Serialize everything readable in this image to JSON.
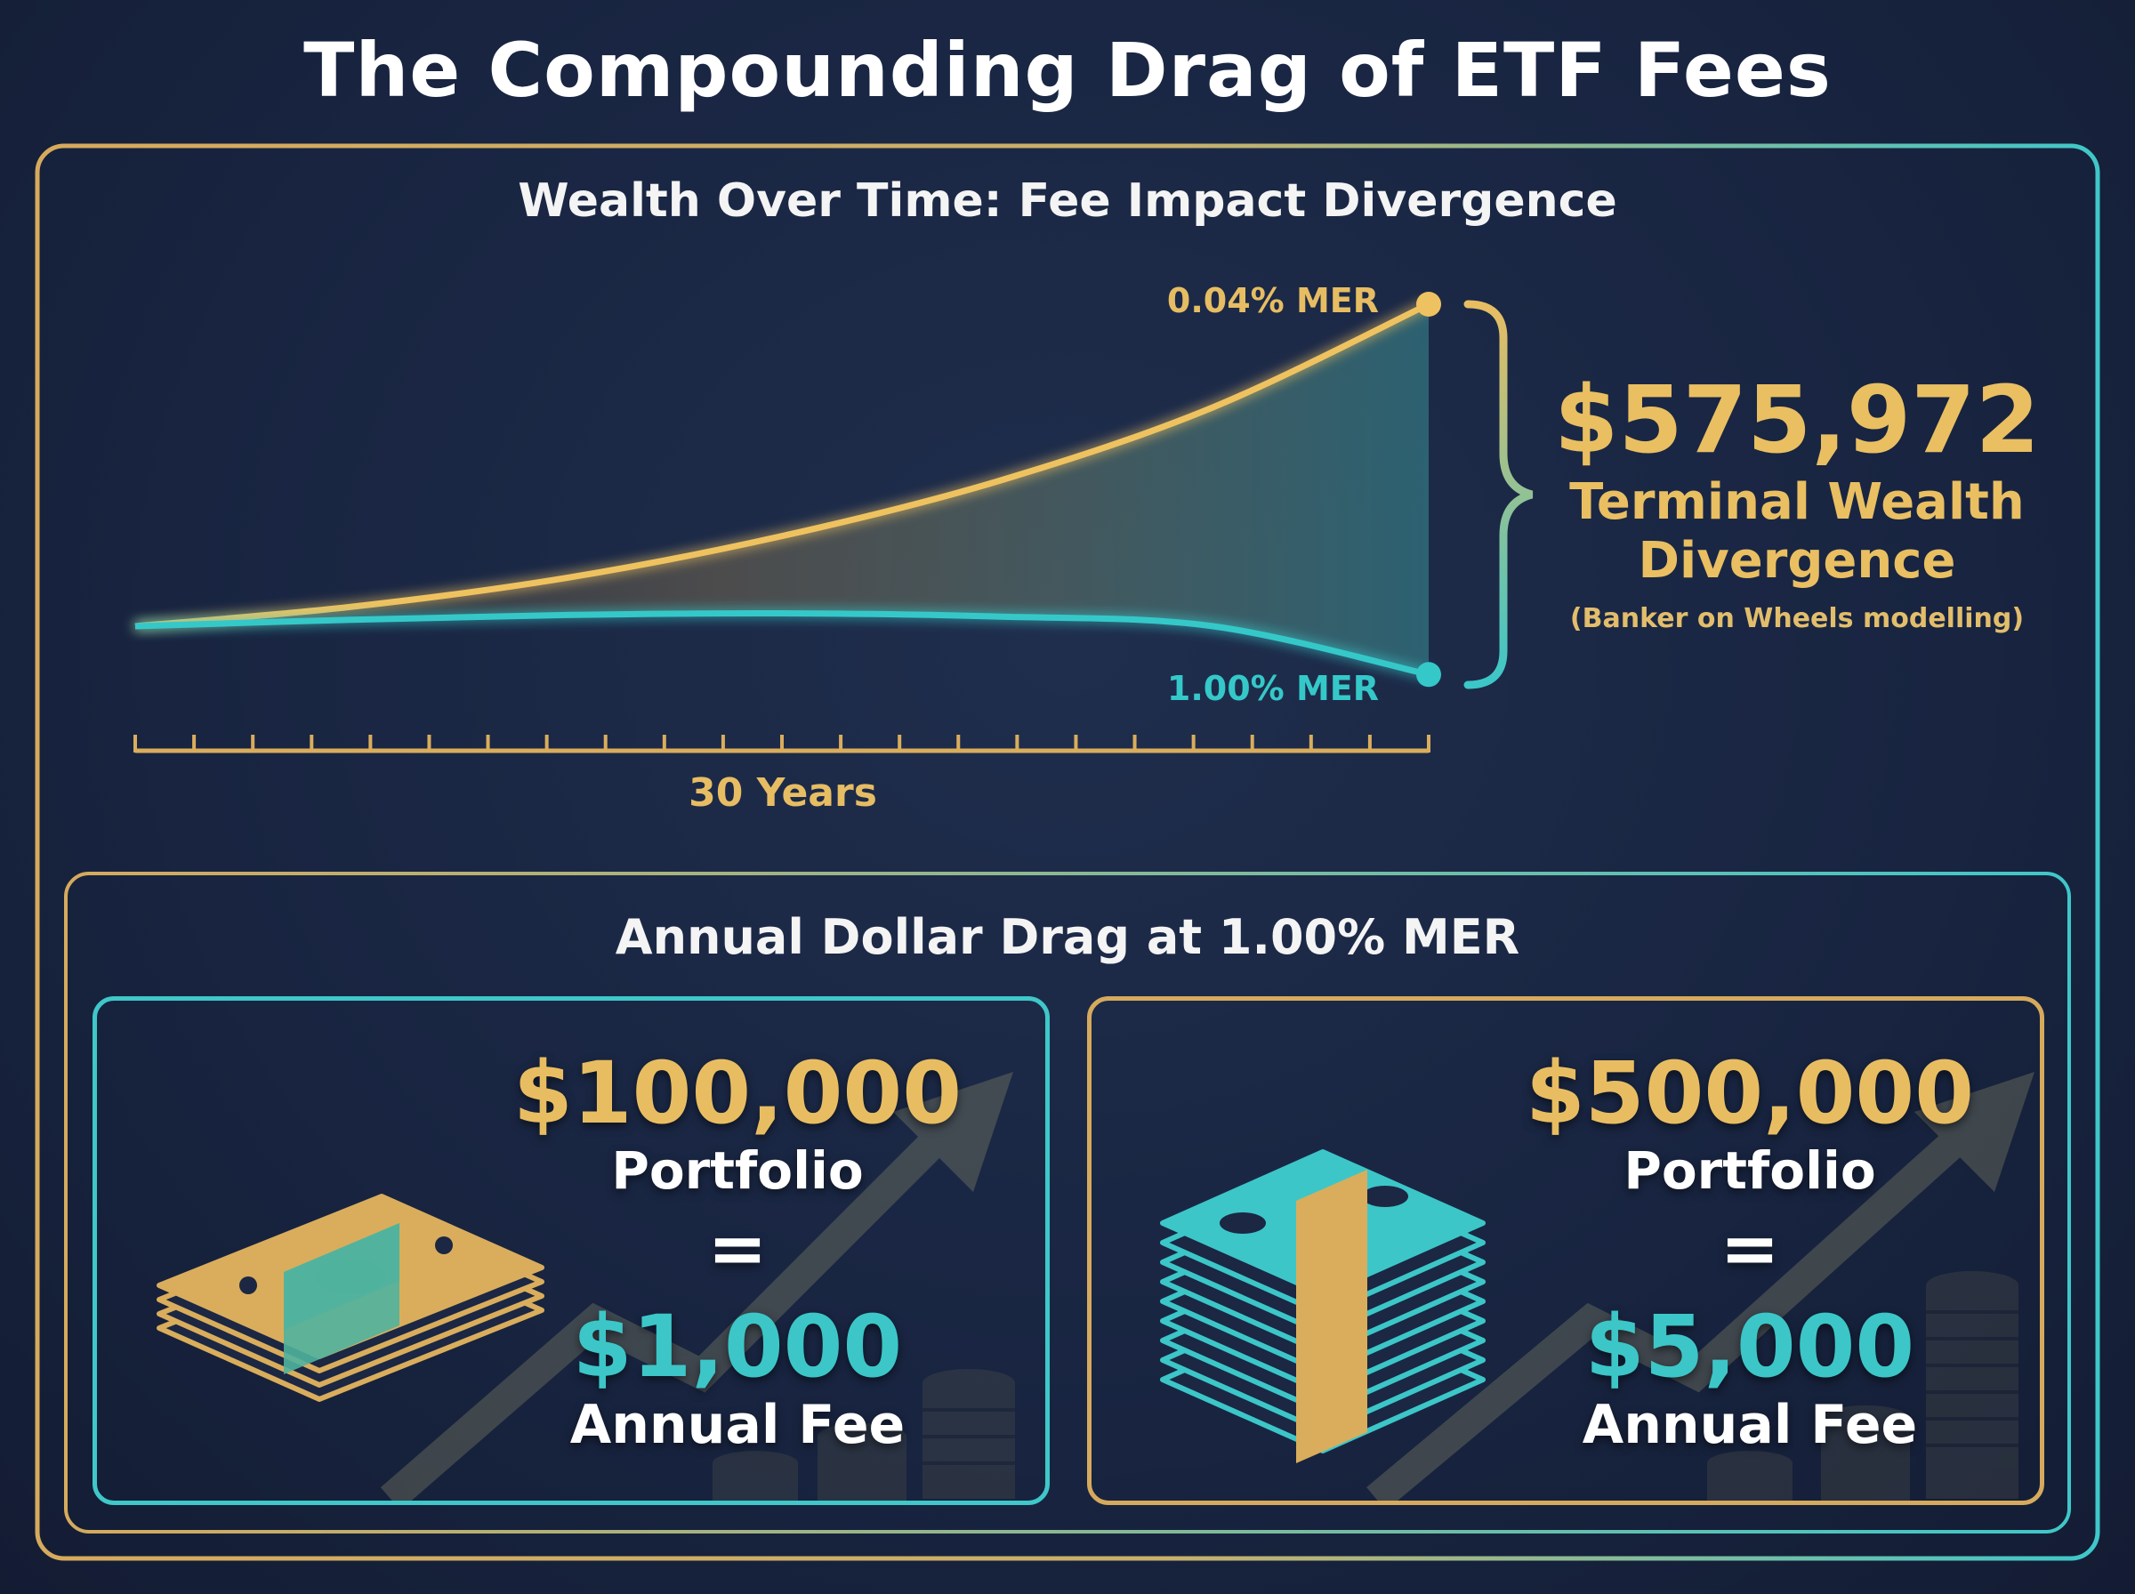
{
  "title": "The Compounding Drag of ETF Fees",
  "chart": {
    "title": "Wealth Over Time: Fee Impact Divergence",
    "axis_label": "30 Years",
    "divergence": {
      "amount": "$575,972",
      "label_line1": "Terminal Wealth",
      "label_line2": "Divergence",
      "note": "(Banker on Wheels modelling)"
    }
  },
  "chart_data": {
    "type": "line",
    "title": "Wealth Over Time: Fee Impact Divergence",
    "xlabel": "30 Years",
    "ylabel": "",
    "x": [
      0,
      5,
      10,
      15,
      20,
      25,
      30
    ],
    "series": [
      {
        "name": "0.04% MER",
        "color": "#efc261",
        "values": [
          0,
          0.06,
          0.15,
          0.28,
          0.45,
          0.68,
          1.0
        ]
      },
      {
        "name": "1.00% MER",
        "color": "#35c8c9",
        "values": [
          0,
          0.02,
          0.035,
          0.04,
          0.03,
          0.0,
          -0.15
        ]
      }
    ],
    "annotation": "$575,972",
    "grid": false
  },
  "drag": {
    "title": "Annual Dollar Drag at 1.00% MER",
    "cards": [
      {
        "portfolio_value": "$100,000",
        "portfolio_label": "Portfolio",
        "equals": "=",
        "fee_value": "$1,000",
        "fee_label": "Annual Fee"
      },
      {
        "portfolio_value": "$500,000",
        "portfolio_label": "Portfolio",
        "equals": "=",
        "fee_value": "$5,000",
        "fee_label": "Annual Fee"
      }
    ]
  },
  "colors": {
    "gold": "#e8bd62",
    "teal": "#3cc6c8",
    "background": "#1b2743"
  }
}
